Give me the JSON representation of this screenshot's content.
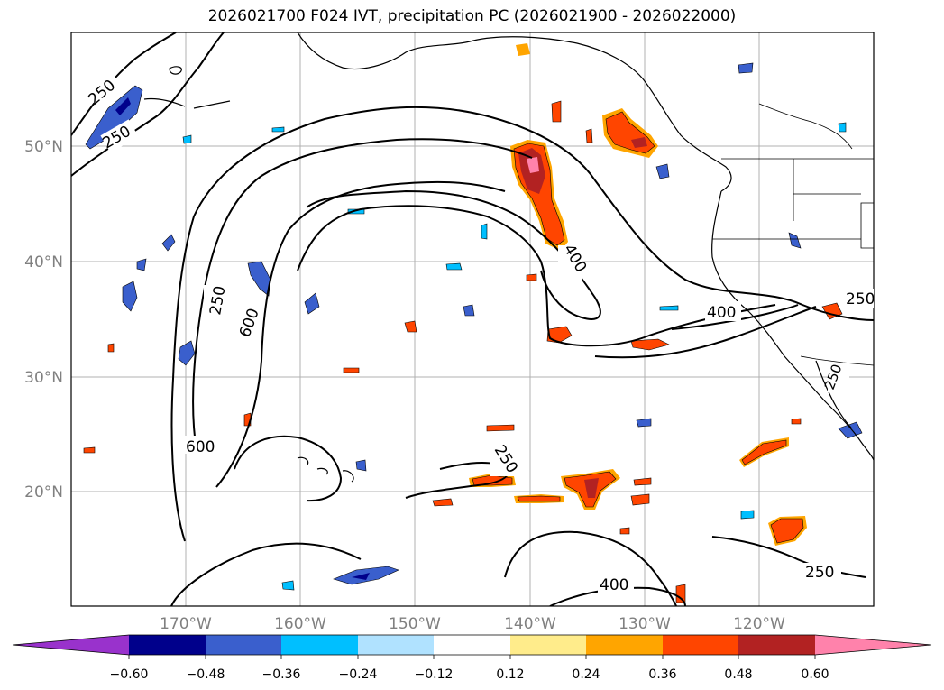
{
  "title": "2026021700 F024 IVT, precipitation PC (2026021900 - 2026022000)",
  "map": {
    "lat_labels": [
      "50°N",
      "40°N",
      "30°N",
      "20°N"
    ],
    "lon_labels": [
      "170°W",
      "160°W",
      "150°W",
      "140°W",
      "130°W",
      "120°W"
    ],
    "contour_labels": [
      "250",
      "250",
      "250",
      "600",
      "600",
      "400",
      "400",
      "250",
      "400",
      "250",
      "250",
      "250"
    ]
  },
  "colorbar": {
    "colors": [
      "#9932cc",
      "#00008b",
      "#3a5fcd",
      "#00bfff",
      "#b0e2ff",
      "#ffffff",
      "#ffec8b",
      "#ffa500",
      "#ff4500",
      "#b22222",
      "#ff82ab"
    ],
    "tick_labels": [
      "−0.60",
      "−0.48",
      "−0.36",
      "−0.24",
      "−0.12",
      "0.12",
      "0.24",
      "0.36",
      "0.48",
      "0.60"
    ]
  }
}
